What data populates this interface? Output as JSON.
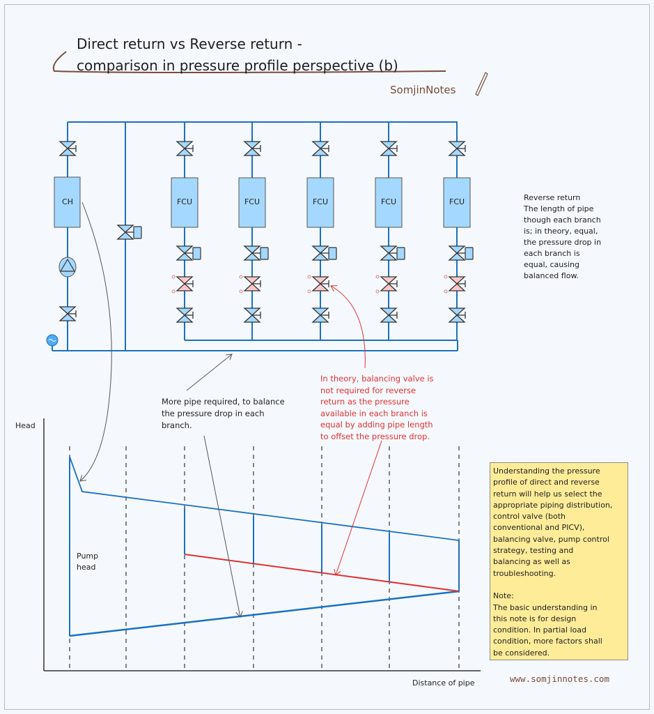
{
  "title": {
    "line1": "Direct return vs Reverse return -",
    "line2": "comparison in pressure profile perspective (b)"
  },
  "brand": "SomjinNotes",
  "website": "www.somjinnotes.com",
  "schematic": {
    "chiller_label": "CH",
    "fcu_labels": [
      "FCU",
      "FCU",
      "FCU",
      "FCU",
      "FCU"
    ],
    "colors": {
      "pipe": "#1971c2",
      "equipment": "#a5d8ff",
      "balancing_valve": "#ffc9c9",
      "annotation_red": "#e03131"
    }
  },
  "notes": {
    "reverse_return": "Reverse return\nThe length of pipe\nthough each branch\nis; in theory, equal,\nthe pressure drop in\neach branch is\nequal, causing\nbalanced flow.",
    "more_pipe": "More pipe required, to balance\nthe pressure drop in each\nbranch.",
    "balancing_valve": "In theory, balancing valve is\nnot required for reverse\nreturn as the pressure\navailable in each branch is\nequal by adding pipe length\nto offset the pressure drop.",
    "summary": "Understanding the pressure\nprofile of direct and reverse\nreturn will help us select the\nappropriate piping distribution,\ncontrol valve (both\nconventional and PICV),\nbalancing valve, pump control\nstrategy, testing and\nbalancing as well as\ntroubleshooting.\n\nNote:\nThe basic understanding in\nthis note is for design\ncondition. In partial load\ncondition, more factors shall\nbe considered."
  },
  "profile": {
    "y_label": "Head",
    "x_label": "Distance of pipe",
    "pump_label": "Pump\nhead"
  }
}
